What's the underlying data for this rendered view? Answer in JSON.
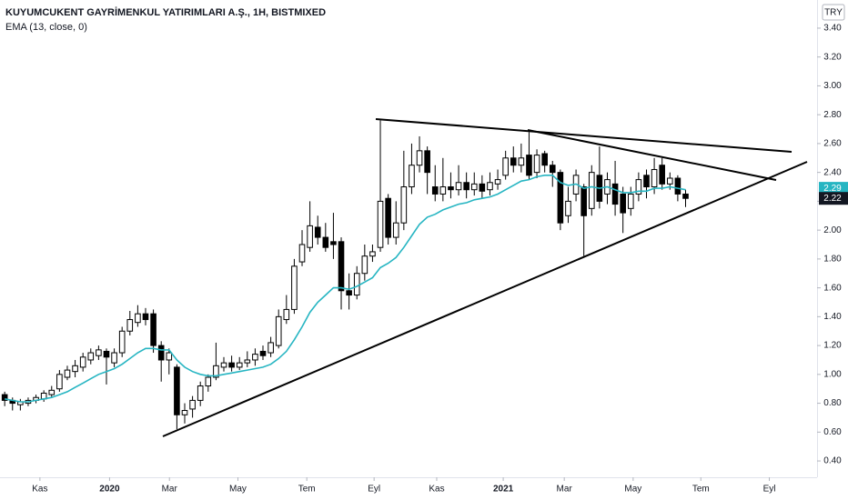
{
  "chart_data": {
    "type": "candlestick",
    "title": "KUYUMCUKENT GAYRİMENKUL YATIRIMLARI A.Ş., 1H, BISTMIXED",
    "currency": "TRY",
    "up_color": "#ffffff",
    "down_color": "#000000",
    "open": [
      0.86,
      0.82,
      0.79,
      0.8,
      0.82,
      0.83,
      0.86,
      0.9,
      0.98,
      1.02,
      1.05,
      1.1,
      1.13,
      1.16,
      1.08,
      1.15,
      1.3,
      1.36,
      1.42,
      1.42,
      1.2,
      1.1,
      1.05,
      0.72,
      0.76,
      0.82,
      0.92,
      0.98,
      1.05,
      1.08,
      1.05,
      1.08,
      1.1,
      1.16,
      1.15,
      1.2,
      1.38,
      1.45,
      1.78,
      1.88,
      2.02,
      1.95,
      1.92,
      1.92,
      1.58,
      1.55,
      1.7,
      1.82,
      1.88,
      2.22,
      1.95,
      2.05,
      2.3,
      2.45,
      2.55,
      2.3,
      2.25,
      2.3,
      2.28,
      2.33,
      2.28,
      2.32,
      2.28,
      2.32,
      2.38,
      2.5,
      2.45,
      2.52,
      2.4,
      2.53,
      2.45,
      2.4,
      2.1,
      2.25,
      2.3,
      2.15,
      2.38,
      2.25,
      2.32,
      2.25,
      2.15,
      2.25,
      2.38,
      2.3,
      2.45,
      2.32,
      2.36,
      2.25
    ],
    "high": [
      0.88,
      0.84,
      0.83,
      0.84,
      0.86,
      0.89,
      0.92,
      1.03,
      1.06,
      1.1,
      1.15,
      1.18,
      1.2,
      1.18,
      1.18,
      1.33,
      1.44,
      1.48,
      1.46,
      1.45,
      1.23,
      1.18,
      1.07,
      0.8,
      0.85,
      0.95,
      1.0,
      1.22,
      1.12,
      1.13,
      1.12,
      1.16,
      1.18,
      1.2,
      1.26,
      1.45,
      1.55,
      1.8,
      2.0,
      2.2,
      2.1,
      2.05,
      2.12,
      1.95,
      1.7,
      1.75,
      1.9,
      1.9,
      2.76,
      2.25,
      2.2,
      2.55,
      2.6,
      2.65,
      2.58,
      2.45,
      2.5,
      2.4,
      2.45,
      2.4,
      2.4,
      2.38,
      2.4,
      2.42,
      2.55,
      2.58,
      2.6,
      2.68,
      2.56,
      2.55,
      2.48,
      2.42,
      2.3,
      2.42,
      2.32,
      2.45,
      2.58,
      2.4,
      2.48,
      2.3,
      2.3,
      2.4,
      2.42,
      2.5,
      2.5,
      2.4,
      2.38,
      2.28
    ],
    "low": [
      0.78,
      0.75,
      0.75,
      0.78,
      0.8,
      0.81,
      0.84,
      0.88,
      0.96,
      0.98,
      1.02,
      1.07,
      1.1,
      0.93,
      1.05,
      1.12,
      1.27,
      1.33,
      1.34,
      1.15,
      0.95,
      1.0,
      0.62,
      0.66,
      0.7,
      0.78,
      0.88,
      0.96,
      1.02,
      1.02,
      1.03,
      1.05,
      1.06,
      1.1,
      1.12,
      1.18,
      1.35,
      1.42,
      1.75,
      1.85,
      1.9,
      1.85,
      1.8,
      1.45,
      1.45,
      1.52,
      1.65,
      1.78,
      1.85,
      1.9,
      1.9,
      2.0,
      2.25,
      2.4,
      2.25,
      2.2,
      2.2,
      2.22,
      2.24,
      2.22,
      2.24,
      2.22,
      2.24,
      2.28,
      2.35,
      2.4,
      2.4,
      2.35,
      2.36,
      2.4,
      2.3,
      2.0,
      2.05,
      2.2,
      1.82,
      2.1,
      2.15,
      2.18,
      2.1,
      1.98,
      2.1,
      2.2,
      2.22,
      2.25,
      2.28,
      2.28,
      2.2,
      2.16
    ],
    "close": [
      0.82,
      0.8,
      0.81,
      0.82,
      0.84,
      0.87,
      0.89,
      1.0,
      1.03,
      1.06,
      1.12,
      1.15,
      1.17,
      1.12,
      1.15,
      1.3,
      1.38,
      1.42,
      1.38,
      1.2,
      1.1,
      1.15,
      0.72,
      0.75,
      0.82,
      0.92,
      0.98,
      1.06,
      1.08,
      1.05,
      1.08,
      1.1,
      1.14,
      1.13,
      1.22,
      1.4,
      1.45,
      1.75,
      1.9,
      2.03,
      1.95,
      1.88,
      1.9,
      1.58,
      1.55,
      1.7,
      1.82,
      1.85,
      2.2,
      1.95,
      2.05,
      2.3,
      2.45,
      2.55,
      2.4,
      2.25,
      2.3,
      2.28,
      2.33,
      2.28,
      2.32,
      2.27,
      2.33,
      2.35,
      2.5,
      2.45,
      2.5,
      2.38,
      2.52,
      2.45,
      2.4,
      2.05,
      2.2,
      2.38,
      2.1,
      2.4,
      2.2,
      2.35,
      2.18,
      2.12,
      2.25,
      2.35,
      2.3,
      2.42,
      2.32,
      2.36,
      2.25,
      2.22
    ],
    "indicator": {
      "name": "EMA (13, close, 0)",
      "color": "#26b5c2",
      "values": [
        0.83,
        0.82,
        0.81,
        0.81,
        0.82,
        0.83,
        0.84,
        0.86,
        0.88,
        0.91,
        0.94,
        0.97,
        1.0,
        1.02,
        1.04,
        1.07,
        1.11,
        1.15,
        1.18,
        1.18,
        1.17,
        1.17,
        1.1,
        1.05,
        1.02,
        1.0,
        0.99,
        0.99,
        1.0,
        1.01,
        1.02,
        1.03,
        1.04,
        1.05,
        1.07,
        1.11,
        1.16,
        1.24,
        1.33,
        1.43,
        1.5,
        1.55,
        1.6,
        1.6,
        1.59,
        1.61,
        1.64,
        1.67,
        1.74,
        1.77,
        1.81,
        1.88,
        1.96,
        2.04,
        2.09,
        2.11,
        2.14,
        2.16,
        2.18,
        2.19,
        2.21,
        2.22,
        2.23,
        2.25,
        2.28,
        2.31,
        2.34,
        2.35,
        2.37,
        2.38,
        2.38,
        2.33,
        2.31,
        2.32,
        2.29,
        2.3,
        2.29,
        2.3,
        2.28,
        2.26,
        2.26,
        2.27,
        2.27,
        2.29,
        2.29,
        2.3,
        2.29,
        2.28
      ]
    },
    "price_markers": [
      {
        "value": 2.29,
        "color": "#26b5c2"
      },
      {
        "value": 2.22,
        "color": "#131722"
      }
    ],
    "ylim": [
      0.287,
      3.595
    ],
    "yticks": [
      {
        "value": 0.4,
        "label": "0.40"
      },
      {
        "value": 0.6,
        "label": "0.60"
      },
      {
        "value": 0.8,
        "label": "0.80"
      },
      {
        "value": 1.0,
        "label": "1.00"
      },
      {
        "value": 1.2,
        "label": "1.20"
      },
      {
        "value": 1.4,
        "label": "1.40"
      },
      {
        "value": 1.6,
        "label": "1.60"
      },
      {
        "value": 1.8,
        "label": "1.80"
      },
      {
        "value": 2.0,
        "label": "2.00"
      },
      {
        "value": 2.2,
        "label": "2.20"
      },
      {
        "value": 2.4,
        "label": "2.40"
      },
      {
        "value": 2.6,
        "label": "2.60"
      },
      {
        "value": 2.8,
        "label": "2.80"
      },
      {
        "value": 3.0,
        "label": "3.00"
      },
      {
        "value": 3.2,
        "label": "3.20"
      },
      {
        "value": 3.4,
        "label": "3.40"
      }
    ],
    "xlim": [
      -0.6,
      103.8
    ],
    "xticks": [
      {
        "value": 4.5,
        "label": "Kas"
      },
      {
        "value": 13.4,
        "label": "2020",
        "bold": true
      },
      {
        "value": 21.05,
        "label": "Mar"
      },
      {
        "value": 29.8,
        "label": "May"
      },
      {
        "value": 38.6,
        "label": "Tem"
      },
      {
        "value": 47.2,
        "label": "Eyl"
      },
      {
        "value": 55.2,
        "label": "Kas"
      },
      {
        "value": 63.7,
        "label": "2021",
        "bold": true
      },
      {
        "value": 71.5,
        "label": "Mar"
      },
      {
        "value": 80.3,
        "label": "May"
      },
      {
        "value": 88.95,
        "label": "Tem"
      },
      {
        "value": 97.7,
        "label": "Eyl"
      }
    ]
  }
}
